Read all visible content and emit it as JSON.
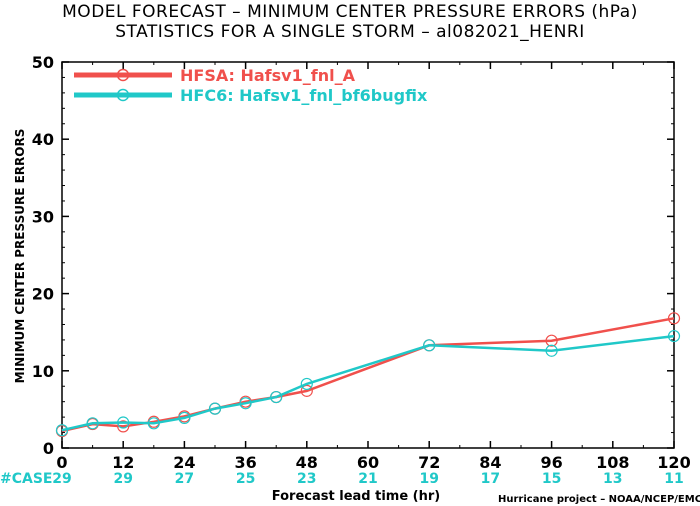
{
  "chart_data": {
    "type": "line",
    "title": "MODEL FORECAST – MINIMUM CENTER PRESSURE ERRORS (hPa)",
    "subtitle": "STATISTICS FOR A SINGLE STORM – al082021_HENRI",
    "xlabel": "Forecast lead time (hr)",
    "ylabel": "MINIMUM CENTER PRESSURE ERRORS",
    "xlim": [
      0,
      120
    ],
    "ylim": [
      0,
      50
    ],
    "xticks": [
      0,
      12,
      24,
      36,
      48,
      60,
      72,
      84,
      96,
      108,
      120
    ],
    "yticks": [
      0,
      10,
      20,
      30,
      40,
      50
    ],
    "grid": false,
    "legend_position": "top-left",
    "series": [
      {
        "name": "HFSA: Hafsv1_fnl_A",
        "color": "#f0504c",
        "x": [
          0,
          6,
          12,
          18,
          24,
          30,
          36,
          42,
          48,
          72,
          96,
          120
        ],
        "y": [
          2.2,
          3.1,
          2.8,
          3.4,
          4.1,
          5.1,
          6.0,
          6.6,
          7.4,
          13.3,
          13.9,
          16.8
        ]
      },
      {
        "name": "HFC6: Hafsv1_fnl_bf6bugfix",
        "color": "#20c8c8",
        "x": [
          0,
          6,
          12,
          18,
          24,
          30,
          36,
          42,
          48,
          72,
          96,
          120
        ],
        "y": [
          2.3,
          3.2,
          3.3,
          3.2,
          3.9,
          5.1,
          5.8,
          6.6,
          8.3,
          13.3,
          12.6,
          14.5
        ]
      }
    ],
    "case_counts": {
      "label": "#CASE",
      "color": "#20c8c8",
      "x": [
        0,
        12,
        24,
        36,
        48,
        60,
        72,
        84,
        96,
        108,
        120
      ],
      "values": [
        "29",
        "29",
        "27",
        "25",
        "23",
        "21",
        "19",
        "17",
        "15",
        "13",
        "11"
      ]
    },
    "credit": "Hurricane project – NOAA/NCEP/EMC"
  }
}
